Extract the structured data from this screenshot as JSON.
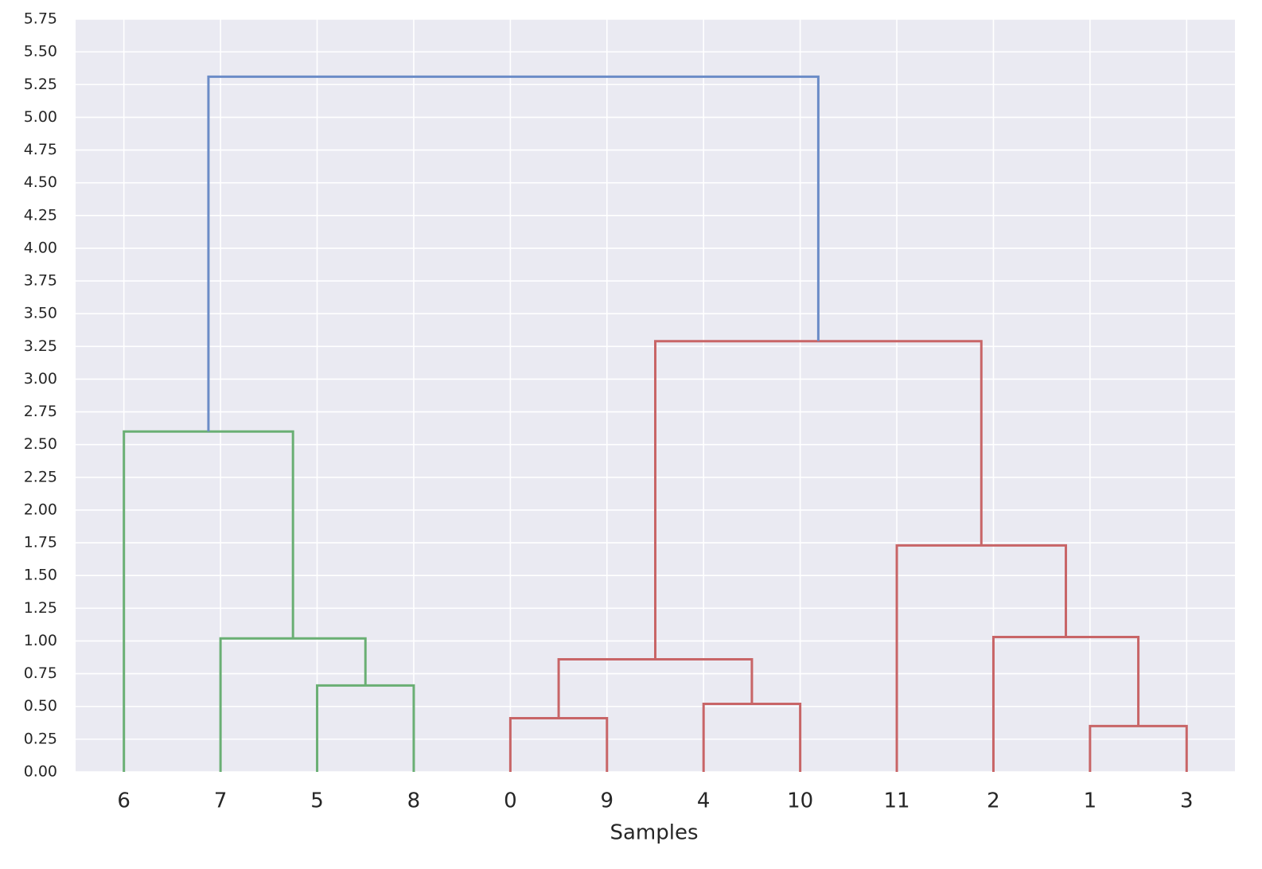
{
  "chart_data": {
    "type": "dendrogram",
    "xlabel": "Samples",
    "categories": [
      "6",
      "7",
      "5",
      "8",
      "0",
      "9",
      "4",
      "10",
      "11",
      "2",
      "1",
      "3"
    ],
    "merges": [
      {
        "children": [
          2,
          3
        ],
        "height": 0.66,
        "color": "#6aaf74"
      },
      {
        "children": [
          1,
          12
        ],
        "height": 1.02,
        "color": "#6aaf74"
      },
      {
        "children": [
          0,
          13
        ],
        "height": 2.6,
        "color": "#6aaf74"
      },
      {
        "children": [
          4,
          5
        ],
        "height": 0.41,
        "color": "#c86567"
      },
      {
        "children": [
          6,
          7
        ],
        "height": 0.52,
        "color": "#c86567"
      },
      {
        "children": [
          15,
          16
        ],
        "height": 0.86,
        "color": "#c86567"
      },
      {
        "children": [
          10,
          11
        ],
        "height": 0.35,
        "color": "#c86567"
      },
      {
        "children": [
          9,
          18
        ],
        "height": 1.03,
        "color": "#c86567"
      },
      {
        "children": [
          8,
          19
        ],
        "height": 1.73,
        "color": "#c86567"
      },
      {
        "children": [
          17,
          20
        ],
        "height": 3.29,
        "color": "#c86567"
      },
      {
        "children": [
          14,
          21
        ],
        "height": 5.31,
        "color": "#6b8cc7"
      }
    ],
    "ylim": [
      0,
      5.75
    ],
    "yticks": [
      {
        "value": 0,
        "label": "0.00"
      },
      {
        "value": 0.25,
        "label": "0.25"
      },
      {
        "value": 0.5,
        "label": "0.50"
      },
      {
        "value": 0.75,
        "label": "0.75"
      },
      {
        "value": 1,
        "label": "1.00"
      },
      {
        "value": 1.25,
        "label": "1.25"
      },
      {
        "value": 1.5,
        "label": "1.50"
      },
      {
        "value": 1.75,
        "label": "1.75"
      },
      {
        "value": 2,
        "label": "2.00"
      },
      {
        "value": 2.25,
        "label": "2.25"
      },
      {
        "value": 2.5,
        "label": "2.50"
      },
      {
        "value": 2.75,
        "label": "2.75"
      },
      {
        "value": 3,
        "label": "3.00"
      },
      {
        "value": 3.25,
        "label": "3.25"
      },
      {
        "value": 3.5,
        "label": "3.50"
      },
      {
        "value": 3.75,
        "label": "3.75"
      },
      {
        "value": 4,
        "label": "4.00"
      },
      {
        "value": 4.25,
        "label": "4.25"
      },
      {
        "value": 4.5,
        "label": "4.50"
      },
      {
        "value": 4.75,
        "label": "4.75"
      },
      {
        "value": 5,
        "label": "5.00"
      },
      {
        "value": 5.25,
        "label": "5.25"
      },
      {
        "value": 5.5,
        "label": "5.50"
      },
      {
        "value": 5.75,
        "label": "5.75"
      }
    ],
    "grid": true
  }
}
